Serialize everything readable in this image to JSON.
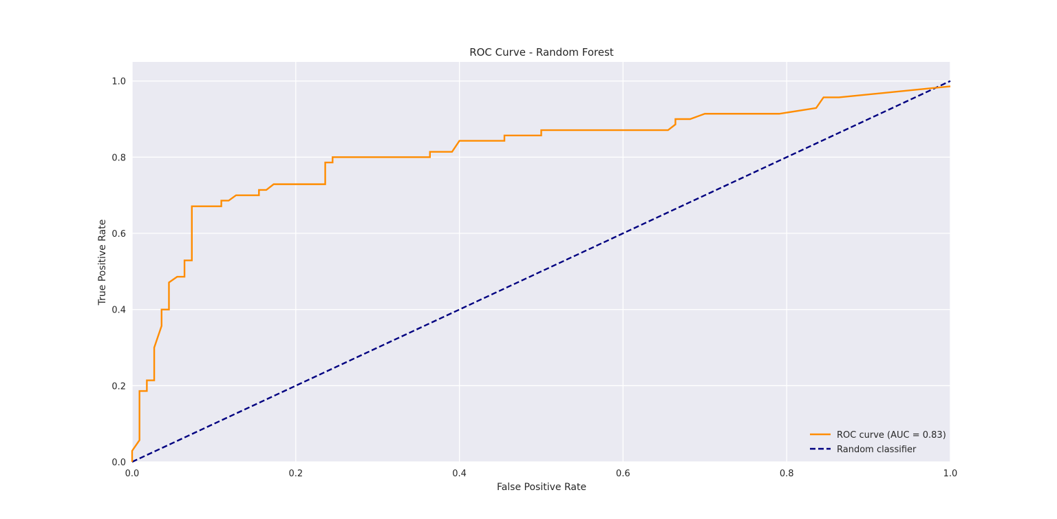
{
  "chart_data": {
    "type": "line",
    "title": "ROC Curve - Random Forest",
    "xlabel": "False Positive Rate",
    "ylabel": "True Positive Rate",
    "xlim": [
      0.0,
      1.0
    ],
    "ylim": [
      0.0,
      1.05
    ],
    "xticks": [
      0.0,
      0.2,
      0.4,
      0.6,
      0.8,
      1.0
    ],
    "yticks": [
      0.0,
      0.2,
      0.4,
      0.6,
      0.8,
      1.0
    ],
    "xtick_labels": [
      "0.0",
      "0.2",
      "0.4",
      "0.6",
      "0.8",
      "1.0"
    ],
    "ytick_labels": [
      "0.0",
      "0.2",
      "0.4",
      "0.6",
      "0.8",
      "1.0"
    ],
    "grid": true,
    "legend_position": "lower-right",
    "series": [
      {
        "name": "ROC curve (AUC = 0.83)",
        "color": "#ff8c00",
        "style": "solid",
        "x": [
          0.0,
          0.0,
          0.009,
          0.009,
          0.018,
          0.018,
          0.027,
          0.027,
          0.036,
          0.036,
          0.045,
          0.045,
          0.055,
          0.064,
          0.064,
          0.073,
          0.073,
          0.109,
          0.109,
          0.118,
          0.127,
          0.155,
          0.155,
          0.164,
          0.173,
          0.236,
          0.236,
          0.245,
          0.245,
          0.364,
          0.364,
          0.391,
          0.4,
          0.455,
          0.455,
          0.5,
          0.5,
          0.655,
          0.664,
          0.664,
          0.682,
          0.7,
          0.791,
          0.836,
          0.845,
          0.864,
          1.0
        ],
        "y": [
          0.0,
          0.029,
          0.057,
          0.186,
          0.186,
          0.214,
          0.214,
          0.3,
          0.357,
          0.4,
          0.4,
          0.471,
          0.486,
          0.486,
          0.529,
          0.529,
          0.671,
          0.671,
          0.686,
          0.686,
          0.7,
          0.7,
          0.714,
          0.714,
          0.729,
          0.729,
          0.786,
          0.786,
          0.8,
          0.8,
          0.814,
          0.814,
          0.843,
          0.843,
          0.857,
          0.857,
          0.871,
          0.871,
          0.886,
          0.9,
          0.9,
          0.914,
          0.914,
          0.929,
          0.957,
          0.957,
          0.986
        ]
      },
      {
        "name": "Random classifier",
        "color": "#000080",
        "style": "dashed",
        "x": [
          0.0,
          1.0
        ],
        "y": [
          0.0,
          1.0
        ]
      }
    ]
  },
  "colors": {
    "plot_background": "#eaeaf2",
    "grid": "#ffffff"
  }
}
